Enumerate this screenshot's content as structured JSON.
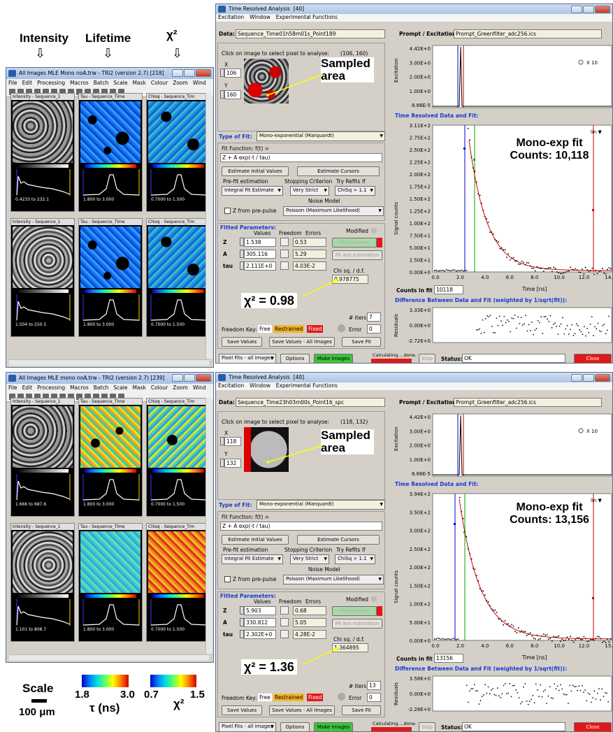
{
  "headers": {
    "intensity": "Intensity",
    "lifetime": "Lifetime",
    "chi": "χ²"
  },
  "left_windows": [
    {
      "title": "All Images MLE Mono noA.trw - TRI2 (version 2.7)",
      "id": "[218]",
      "menu": [
        "File",
        "Edit",
        "Processing",
        "Macros",
        "Batch",
        "Scale",
        "Mask",
        "Colour",
        "Zoom",
        "Wind"
      ],
      "panels": [
        {
          "title": "Intensity - Sequence_1",
          "range": "0.4233 to 232.1",
          "cls": "gray"
        },
        {
          "title": "Tau - Sequence_Time",
          "range": "1.800 to 3.000",
          "cls": "taublue"
        },
        {
          "title": "Chisq - Sequence_Tim",
          "range": "0.7000 to 1.500",
          "cls": "chiblue"
        },
        {
          "title": "Intensity - Sequence_1",
          "range": "1.504 to 250.5",
          "cls": "gray2"
        },
        {
          "title": "Tau - Sequence_Time",
          "range": "1.800 to 3.000",
          "cls": "taublue"
        },
        {
          "title": "Chisq - Sequence_Tim",
          "range": "0.7000 to 1.500",
          "cls": "chiblue"
        }
      ]
    },
    {
      "title": "All Images MLE mono noA.trw - TRI2 (version 2.7)",
      "id": "[239]",
      "menu": [
        "File",
        "Edit",
        "Processing",
        "Macros",
        "Batch",
        "Scale",
        "Mask",
        "Colour",
        "Zoom",
        "Wind"
      ],
      "panels": [
        {
          "title": "Intensity - Sequence_1",
          "range": "1.666 to 687.6",
          "cls": "gray"
        },
        {
          "title": "Tau - Sequence_Time",
          "range": "1.800 to 3.000",
          "cls": "tauyel"
        },
        {
          "title": "Chisq - Sequence_Tim",
          "range": "0.7000 to 1.500",
          "cls": "chiyel"
        },
        {
          "title": "Intensity - Sequence_1",
          "range": "1.101 to 808.7",
          "cls": "gray2"
        },
        {
          "title": "Tau - Sequence_Time",
          "range": "1.800 to 3.000",
          "cls": "tauteal"
        },
        {
          "title": "Chisq - Sequence_Tim",
          "range": "0.7000 to 1.500",
          "cls": "chiorange"
        }
      ]
    }
  ],
  "legend": {
    "scale": "Scale",
    "scale_len": "100 μm",
    "tau_min": "1.8",
    "tau_max": "3.0",
    "tau_label": "τ (ns)",
    "chi_min": "0.7",
    "chi_max": "1.5",
    "chi_label": "χ²"
  },
  "right_windows": [
    {
      "title": "Time Resolved Analysis",
      "id": "[40]",
      "menu": [
        "Excitation",
        "Window",
        "Experimental Functions"
      ],
      "data_label": "Data:",
      "data_value": "Sequence_Time01h58m01s_Point189",
      "prompt_label": "Prompt / Excitation:",
      "prompt_value": "Prompt_Greenfilter_adc256.ics",
      "click_text": "Click on image to select pixel to analyse:",
      "coords": "(106, 160)",
      "x_label": "X",
      "x_value": "106",
      "y_label": "Y",
      "y_value": "160",
      "sampled": "Sampled area",
      "type_of_fit_label": "Type of Fit:",
      "type_of_fit": "Mono-exponential (Marquardt)",
      "fit_function_label": "Fit Function:  f(t) =",
      "fit_function": "Z + A exp(-t / tau)",
      "estimate_initial": "Estimate Initial Values",
      "estimate_cursors": "Estimate Cursors",
      "prefit_label": "Pre-fit estimation",
      "prefit": "Integral Fit Estimate",
      "stopping_label": "Stopping Criterion",
      "stopping": "Very Strict",
      "refits_label": "Try Refits If",
      "refits": "ChiSq > 1.1",
      "noise_label": "Noise Model",
      "noise": "Poisson (Maximum Likelihood)",
      "zprepulse": "Z from pre-pulse",
      "fitted_label": "Fitted Parameters:",
      "col_values": "Values",
      "col_freedom": "Freedom",
      "col_errors": "Errors",
      "modified": "Modified",
      "params": [
        {
          "name": "Z",
          "value": "1.538",
          "error": "0.53"
        },
        {
          "name": "A",
          "value": "305.116",
          "error": "5.29"
        },
        {
          "name": "tau",
          "value": "2.111E+0",
          "error": "4.03E-2"
        }
      ],
      "fit_transient": "Fit transient",
      "fit_wo": "Fit w/o estimation",
      "chisq_label": "Chi sq. / d.f.",
      "chisq": "0.978775",
      "chi_ann": "χ² = 0.98",
      "iters_label": "# iters",
      "iters": "7",
      "error_label": "Error",
      "error": "0",
      "freedom_key": "Freedom Key:",
      "free": "Free",
      "restrained": "Restrained",
      "fixed": "Fixed",
      "save_values": "Save Values",
      "save_all": "Save Values - All Images",
      "save_fit": "Save Fit",
      "pixel_fits": "Pixel Fits - all images",
      "options": "Options",
      "make_images": "Make Images",
      "calculating": "Calculating....done.",
      "stop": "Stop",
      "status_label": "Status:",
      "status": "OK",
      "close": "Close",
      "exc_ylabel": "Excitation",
      "exc_ticks": [
        "4.42E+0",
        "3.00E+0",
        "2.00E+0",
        "1.00E+0",
        "8.86E-5"
      ],
      "x10": "X 10",
      "trd_label": "Time Resolved Data and Fit:",
      "sig_ylabel": "Signal counts",
      "sig_ticks": [
        "3.11E+2",
        "2.75E+2",
        "2.50E+2",
        "2.25E+2",
        "2.00E+2",
        "1.75E+2",
        "1.50E+2",
        "1.25E+2",
        "1.00E+2",
        "7.50E+1",
        "5.00E+1",
        "2.50E+1",
        "0.00E+0"
      ],
      "x_ticks": [
        "0.0",
        "2.0",
        "4.0",
        "6.0",
        "8.0",
        "10.0",
        "12.0",
        "14."
      ],
      "xlabel": "Time [ns]",
      "lin": "lin",
      "fit_ann": "Mono-exp fit\nCounts: 10,118",
      "counts_label": "Counts in fit",
      "counts": "10118",
      "diff_label": "Difference Between Data and Fit (weighted by 1/sqrt(fit)):",
      "res_ylabel": "Residuals",
      "res_ticks": [
        "3.33E+0",
        "0.00E+0",
        "-2.72E+0"
      ]
    },
    {
      "title": "Time Resolved Analysis",
      "id": "[40]",
      "menu": [
        "Excitation",
        "Window",
        "Experimental Functions"
      ],
      "data_label": "Data:",
      "data_value": "Sequence_Time23h03m00s_Point16_spc",
      "prompt_label": "Prompt / Excitation:",
      "prompt_value": "Prompt_Greenfilter_adc256.ics",
      "click_text": "Click on image to select pixel to analyse:",
      "coords": "(118, 132)",
      "x_label": "X",
      "x_value": "118",
      "y_label": "Y",
      "y_value": "132",
      "sampled": "Sampled area",
      "type_of_fit_label": "Type of Fit:",
      "type_of_fit": "Mono-exponential (Marquardt)",
      "fit_function_label": "Fit Function:  f(t) =",
      "fit_function": "Z + A exp(-t / tau)",
      "estimate_initial": "Estimate Initial Values",
      "estimate_cursors": "Estimate Cursors",
      "prefit_label": "Pre-fit estimation",
      "prefit": "Integral Fit Estimate",
      "stopping_label": "Stopping Criterion",
      "stopping": "Very Strict",
      "refits_label": "Try Refits If",
      "refits": "ChiSq > 1.1",
      "noise_label": "Noise Model",
      "noise": "Poisson (Maximum Likelihood)",
      "zprepulse": "Z from pre-pulse",
      "fitted_label": "Fitted Parameters:",
      "col_values": "Values",
      "col_freedom": "Freedom",
      "col_errors": "Errors",
      "modified": "Modified",
      "params": [
        {
          "name": "Z",
          "value": "5.903",
          "error": "0.68"
        },
        {
          "name": "A",
          "value": "330.812",
          "error": "5.05"
        },
        {
          "name": "tau",
          "value": "2.302E+0",
          "error": "4.28E-2"
        }
      ],
      "fit_transient": "Fit transient",
      "fit_wo": "Fit w/o estimation",
      "chisq_label": "Chi sq. / d.f.",
      "chisq": "1.364895",
      "chi_ann": "χ² = 1.36",
      "iters_label": "# iters",
      "iters": "13",
      "error_label": "Error",
      "error": "0",
      "freedom_key": "Freedom Key:",
      "free": "Free",
      "restrained": "Restrained",
      "fixed": "Fixed",
      "save_values": "Save Values",
      "save_all": "Save Values - All Images",
      "save_fit": "Save Fit",
      "pixel_fits": "Pixel Fits - all images",
      "options": "Options",
      "make_images": "Make Images",
      "calculating": "Calculating....done.",
      "stop": "Stop",
      "status_label": "Status:",
      "status": "OK",
      "close": "Close",
      "exc_ylabel": "Excitation",
      "exc_ticks": [
        "4.42E+0",
        "3.00E+0",
        "2.00E+0",
        "1.00E+0",
        "8.86E-5"
      ],
      "x10": "X 10",
      "trd_label": "Time Resolved Data and Fit:",
      "sig_ylabel": "Signal counts",
      "sig_ticks": [
        "3.94E+2",
        "3.50E+2",
        "3.00E+2",
        "2.50E+2",
        "2.00E+2",
        "1.50E+2",
        "1.00E+2",
        "5.00E+1",
        "0.00E+0"
      ],
      "x_ticks": [
        "0.0",
        "2.0",
        "4.0",
        "6.0",
        "8.0",
        "10.0",
        "12.0",
        "15."
      ],
      "xlabel": "Time [ns]",
      "lin": "lin",
      "fit_ann": "Mono-exp fit\nCounts: 13,156",
      "counts_label": "Counts in fit",
      "counts": "13156",
      "diff_label": "Difference Between Data and Fit (weighted by 1/sqrt(fit)):",
      "res_ylabel": "Residuals",
      "res_ticks": [
        "3.58E+0",
        "0.00E+0",
        "-2.28E+0"
      ]
    }
  ]
}
